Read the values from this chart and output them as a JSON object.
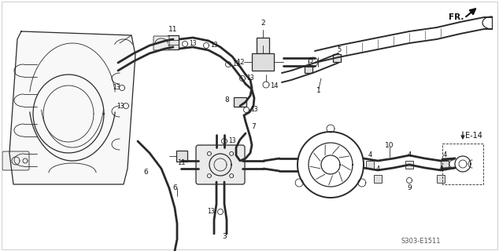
{
  "background_color": "#ffffff",
  "diagram_code": "S303-E1511",
  "fr_label": "FR.",
  "e14_label": "E-14",
  "fig_width": 6.34,
  "fig_height": 3.2,
  "dpi": 100,
  "engine_color": "#333333",
  "line_color": "#2a2a2a",
  "label_color": "#111111",
  "border_color": "#cccccc"
}
